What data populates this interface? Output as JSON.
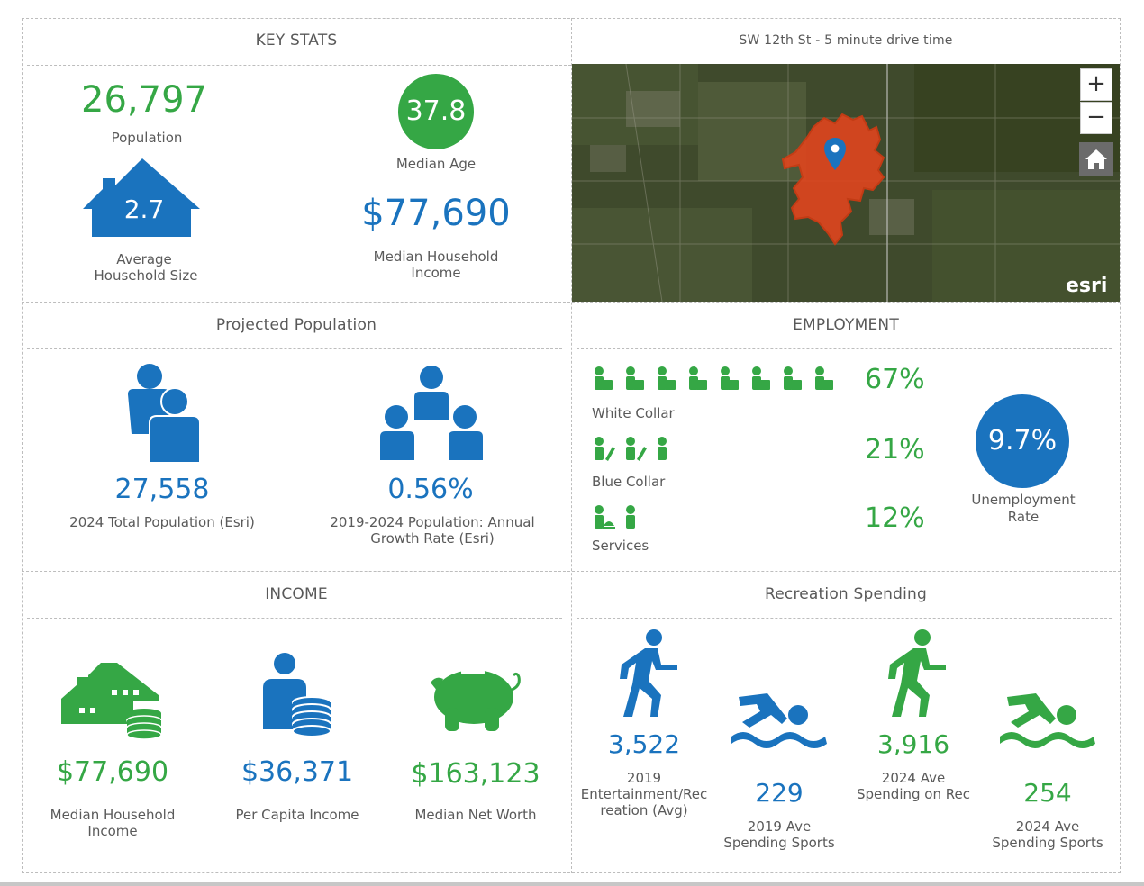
{
  "key_stats": {
    "title": "KEY STATS",
    "population_value": "26,797",
    "population_label": "Population",
    "median_age_value": "37.8",
    "median_age_label": "Median Age",
    "household_size_value": "2.7",
    "household_size_label_1": "Average",
    "household_size_label_2": "Household Size",
    "median_income_value": "$77,690",
    "median_income_label_1": "Median Household",
    "median_income_label_2": "Income"
  },
  "map_panel": {
    "title": "SW 12th St - 5 minute drive time",
    "zoom_in_label": "+",
    "zoom_out_label": "−",
    "home_icon": "home-icon",
    "attribution": "esri"
  },
  "projected_population": {
    "title": "Projected Population",
    "total_value": "27,558",
    "total_label": "2024 Total Population (Esri)",
    "growth_value": "0.56%",
    "growth_label_1": "2019-2024 Population: Annual",
    "growth_label_2": "Growth Rate (Esri)"
  },
  "employment": {
    "title": "EMPLOYMENT",
    "white_collar_pct": "67%",
    "white_collar_label": "White Collar",
    "blue_collar_pct": "21%",
    "blue_collar_label": "Blue Collar",
    "services_pct": "12%",
    "services_label": "Services",
    "unemployment_value": "9.7%",
    "unemployment_label_1": "Unemployment",
    "unemployment_label_2": "Rate"
  },
  "income": {
    "title": "INCOME",
    "median_household_value": "$77,690",
    "median_household_label_1": "Median Household",
    "median_household_label_2": "Income",
    "per_capita_value": "$36,371",
    "per_capita_label": "Per Capita Income",
    "net_worth_value": "$163,123",
    "net_worth_label": "Median Net Worth"
  },
  "recreation": {
    "title": "Recreation Spending",
    "ent_2019_value": "3,522",
    "ent_2019_label_1": "2019",
    "ent_2019_label_2": "Entertainment/Rec",
    "ent_2019_label_3": "reation (Avg)",
    "sports_2019_value": "229",
    "sports_2019_label_1": "2019 Ave",
    "sports_2019_label_2": "Spending Sports",
    "rec_2024_value": "3,916",
    "rec_2024_label_1": "2024 Ave",
    "rec_2024_label_2": "Spending on Rec",
    "sports_2024_value": "254",
    "sports_2024_label_1": "2024 Ave",
    "sports_2024_label_2": "Spending Sports"
  },
  "colors": {
    "green": "#35a745",
    "blue": "#1a73be"
  }
}
